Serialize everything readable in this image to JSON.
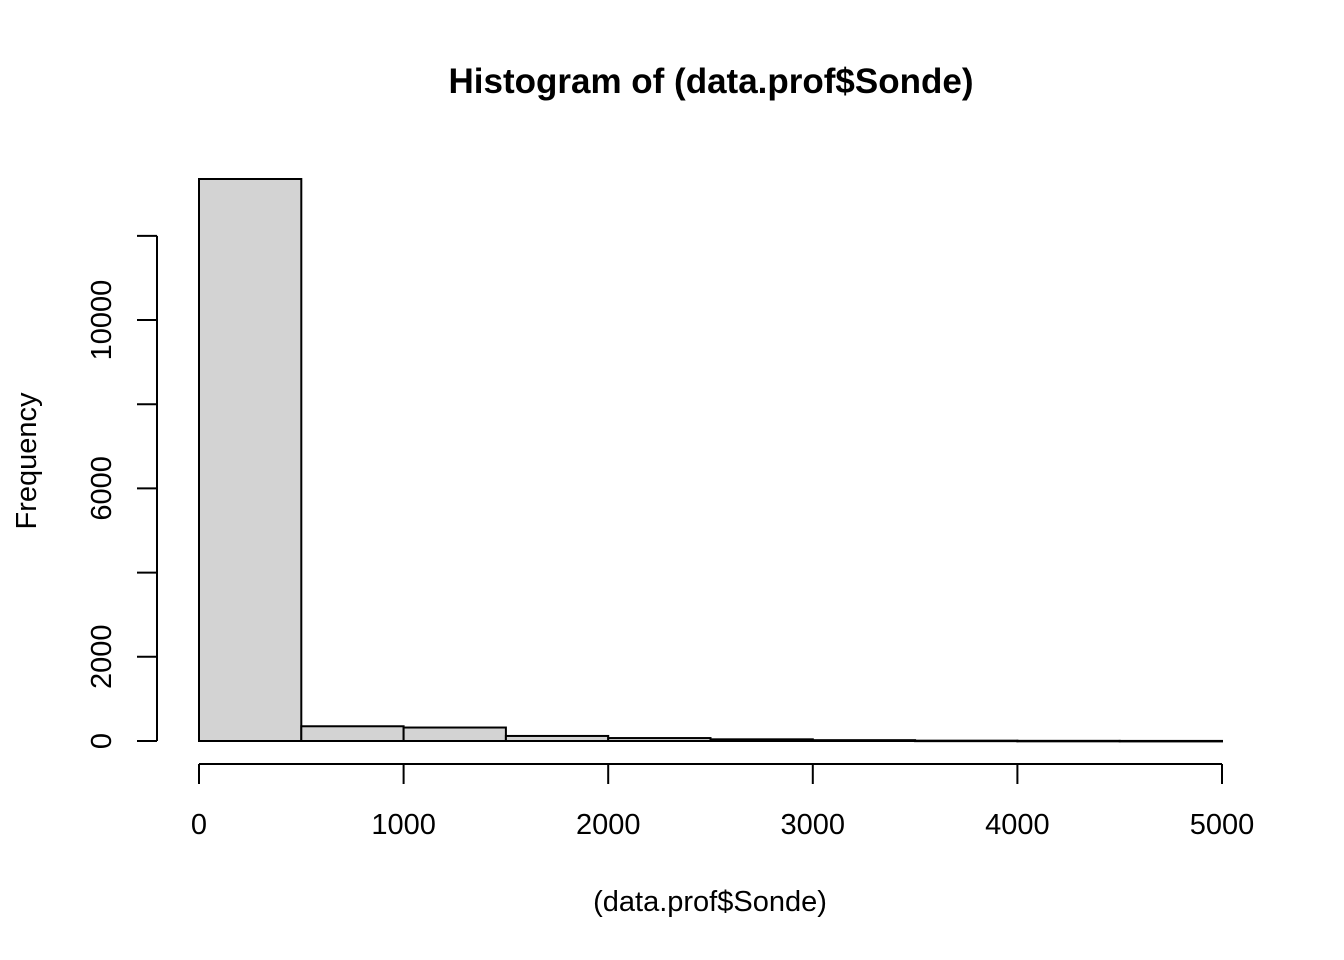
{
  "chart_data": {
    "type": "bar",
    "title": "Histogram of (data.prof$Sonde)",
    "xlabel": "(data.prof$Sonde)",
    "ylabel": "Frequency",
    "bin_edges": [
      0,
      500,
      1000,
      1500,
      2000,
      2500,
      3000,
      3500,
      4000,
      4500,
      5000
    ],
    "values": [
      13350,
      350,
      320,
      120,
      70,
      40,
      20,
      8,
      4,
      2
    ],
    "xlim": [
      0,
      5000
    ],
    "ylim": [
      0,
      13350
    ],
    "x_ticks": [
      0,
      1000,
      2000,
      3000,
      4000,
      5000
    ],
    "x_tick_labels": [
      "0",
      "1000",
      "2000",
      "3000",
      "4000",
      "5000"
    ],
    "y_ticks": [
      0,
      2000,
      4000,
      6000,
      8000,
      10000,
      12000
    ],
    "y_tick_labels": [
      "0",
      "2000",
      "",
      "6000",
      "",
      "10000",
      ""
    ],
    "bar_fill": "#d3d3d3",
    "grid": false,
    "legend": "none"
  }
}
